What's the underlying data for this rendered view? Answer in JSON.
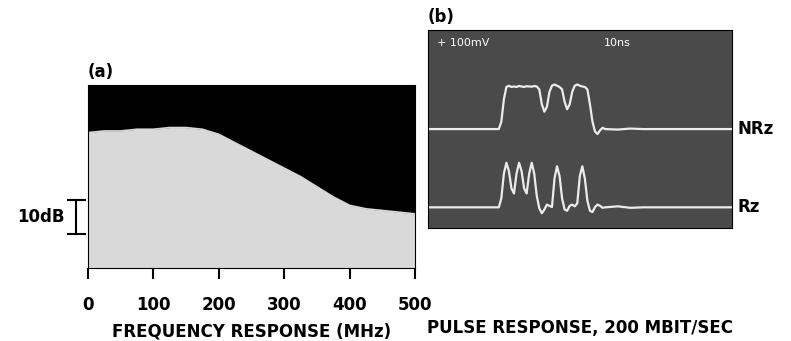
{
  "chart_data": [
    {
      "type": "area",
      "title": "(a)",
      "x_label": "FREQUENCY RESPONSE (MHz)",
      "x": [
        0,
        25,
        50,
        75,
        100,
        125,
        150,
        175,
        200,
        225,
        250,
        275,
        300,
        325,
        350,
        375,
        400,
        425,
        450,
        475,
        500
      ],
      "values": [
        40,
        40.5,
        40.5,
        41,
        41,
        41.5,
        41.5,
        41,
        39.5,
        37,
        34.5,
        32,
        29.5,
        27,
        24,
        21,
        18.5,
        17.5,
        17,
        16.5,
        16
      ],
      "color": "#d9d9d9",
      "xlim": [
        0,
        500
      ],
      "ylim": [
        0,
        54
      ],
      "xticks": [
        0,
        100,
        200,
        300,
        400,
        500
      ],
      "tick_labels": "x",
      "scale_bar": {
        "label": "10dB",
        "y": [
          10,
          20
        ]
      }
    },
    {
      "type": "line",
      "title": "(b)",
      "x_label": "PULSE RESPONSE, 200 MBIT/SEC",
      "screen_labels": [
        "+ 100mV",
        "10ns"
      ],
      "x": [
        0,
        5,
        10,
        15,
        20,
        25,
        26,
        27,
        28,
        29,
        30,
        31,
        32,
        33,
        34,
        35,
        36,
        37,
        38,
        39,
        40,
        41,
        42,
        43,
        44,
        45,
        46,
        47,
        48,
        49,
        50,
        51,
        52,
        53,
        54,
        55,
        56,
        57,
        58,
        59,
        60,
        61,
        62,
        63,
        64,
        65,
        66,
        67,
        68,
        69,
        70,
        75,
        80,
        85,
        90,
        95,
        100,
        105,
        110,
        115,
        120
      ],
      "series": [
        {
          "name": "NRz",
          "color": "#ececec",
          "values": [
            400,
            400,
            400,
            400,
            400,
            400,
            400,
            400,
            400,
            430,
            520,
            570,
            575,
            570,
            572,
            570,
            574,
            572,
            570,
            573,
            572,
            571,
            574,
            572,
            560,
            500,
            470,
            490,
            550,
            575,
            580,
            575,
            570,
            560,
            510,
            480,
            500,
            550,
            575,
            580,
            575,
            572,
            570,
            560,
            500,
            430,
            390,
            380,
            395,
            405,
            400,
            398,
            402,
            400,
            400,
            400,
            400,
            400,
            400,
            400,
            400
          ]
        },
        {
          "name": "Rz",
          "color": "#ececec",
          "values": [
            84,
            84,
            84,
            84,
            84,
            84,
            84,
            84,
            84,
            120,
            220,
            264,
            230,
            160,
            140,
            220,
            264,
            230,
            160,
            140,
            220,
            264,
            220,
            130,
            80,
            60,
            75,
            95,
            90,
            85,
            200,
            250,
            210,
            120,
            75,
            70,
            90,
            95,
            88,
            100,
            210,
            250,
            200,
            110,
            70,
            65,
            85,
            95,
            90,
            82,
            84,
            88,
            82,
            84,
            84,
            84,
            84,
            84,
            84,
            84,
            84
          ]
        }
      ],
      "xlim": [
        0,
        120
      ],
      "ylim": [
        0,
        800
      ],
      "tick_labels": false
    }
  ]
}
